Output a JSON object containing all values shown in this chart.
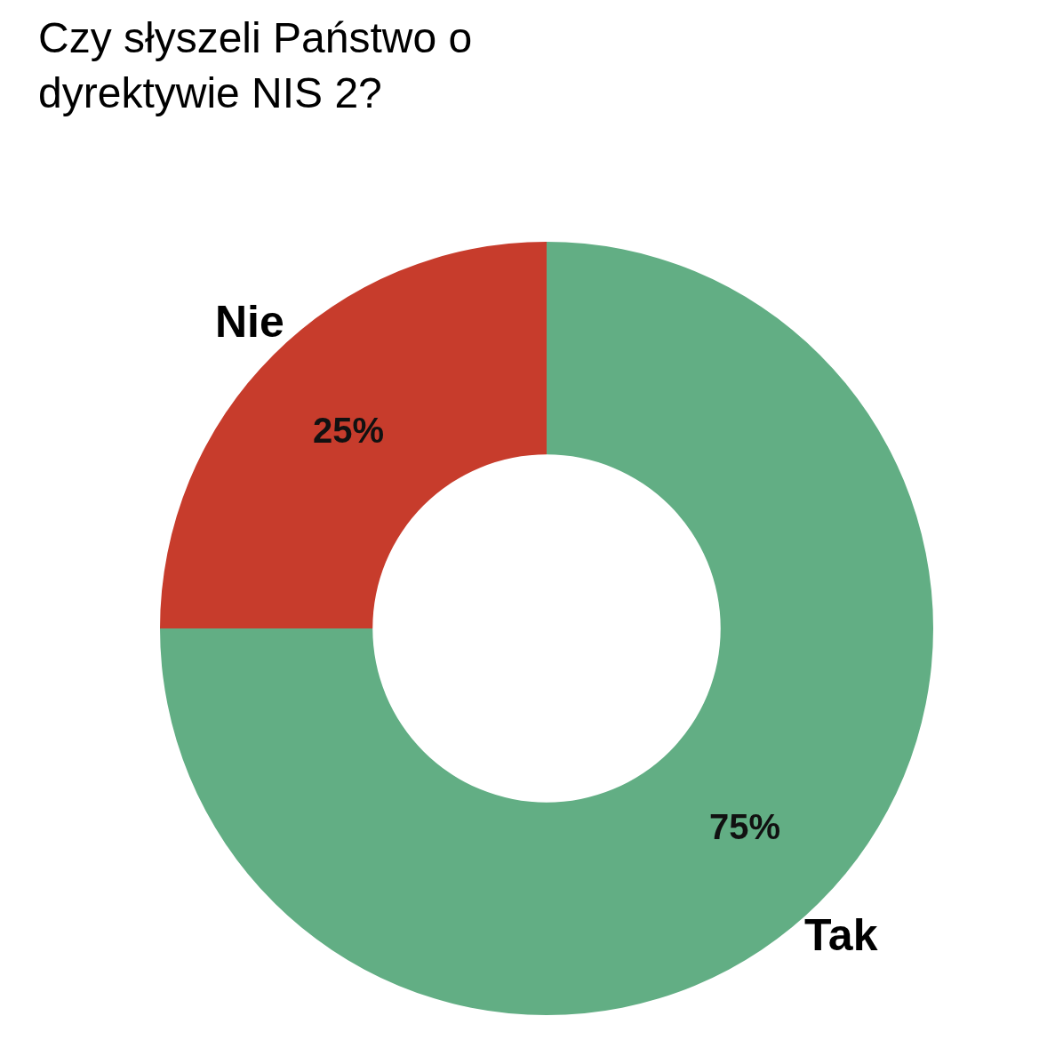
{
  "chart_data": {
    "type": "donut",
    "title": "Czy słyszeli Państwo o\ndyrektywie NIS 2?",
    "categories": [
      "Tak",
      "Nie"
    ],
    "values": [
      75,
      25
    ],
    "colors": [
      "#62ae84",
      "#c73c2c"
    ],
    "value_labels": [
      "75%",
      "25%"
    ]
  }
}
